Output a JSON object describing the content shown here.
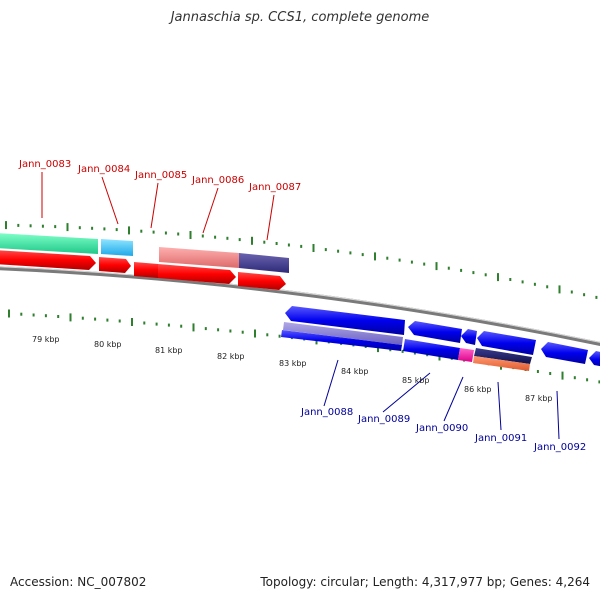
{
  "title": "Jannaschia sp. CCS1, complete genome",
  "footer": {
    "accession": "Accession: NC_007802",
    "topology": "Topology: circular; Length: 4,317,977 bp; Genes: 4,264"
  },
  "colors": {
    "top_label": "#cc0000",
    "bottom_label": "#000099",
    "ticks": "#2f7f2f",
    "backbone": "#7a7a7a"
  },
  "kbp_labels": [
    "79 kbp",
    "80 kbp",
    "81 kbp",
    "82 kbp",
    "83 kbp",
    "84 kbp",
    "85 kbp",
    "86 kbp",
    "87 kbp"
  ],
  "genes_top": [
    {
      "name": "Jann_0083",
      "color": "#cc0000"
    },
    {
      "name": "Jann_0084",
      "color": "#cc0000"
    },
    {
      "name": "Jann_0085",
      "color": "#cc0000"
    },
    {
      "name": "Jann_0086",
      "color": "#cc0000"
    },
    {
      "name": "Jann_0087",
      "color": "#cc0000"
    }
  ],
  "genes_bottom": [
    {
      "name": "Jann_0088",
      "color": "#000099"
    },
    {
      "name": "Jann_0089",
      "color": "#000099"
    },
    {
      "name": "Jann_0090",
      "color": "#000099"
    },
    {
      "name": "Jann_0091",
      "color": "#000099"
    },
    {
      "name": "Jann_0092",
      "color": "#000099"
    }
  ]
}
